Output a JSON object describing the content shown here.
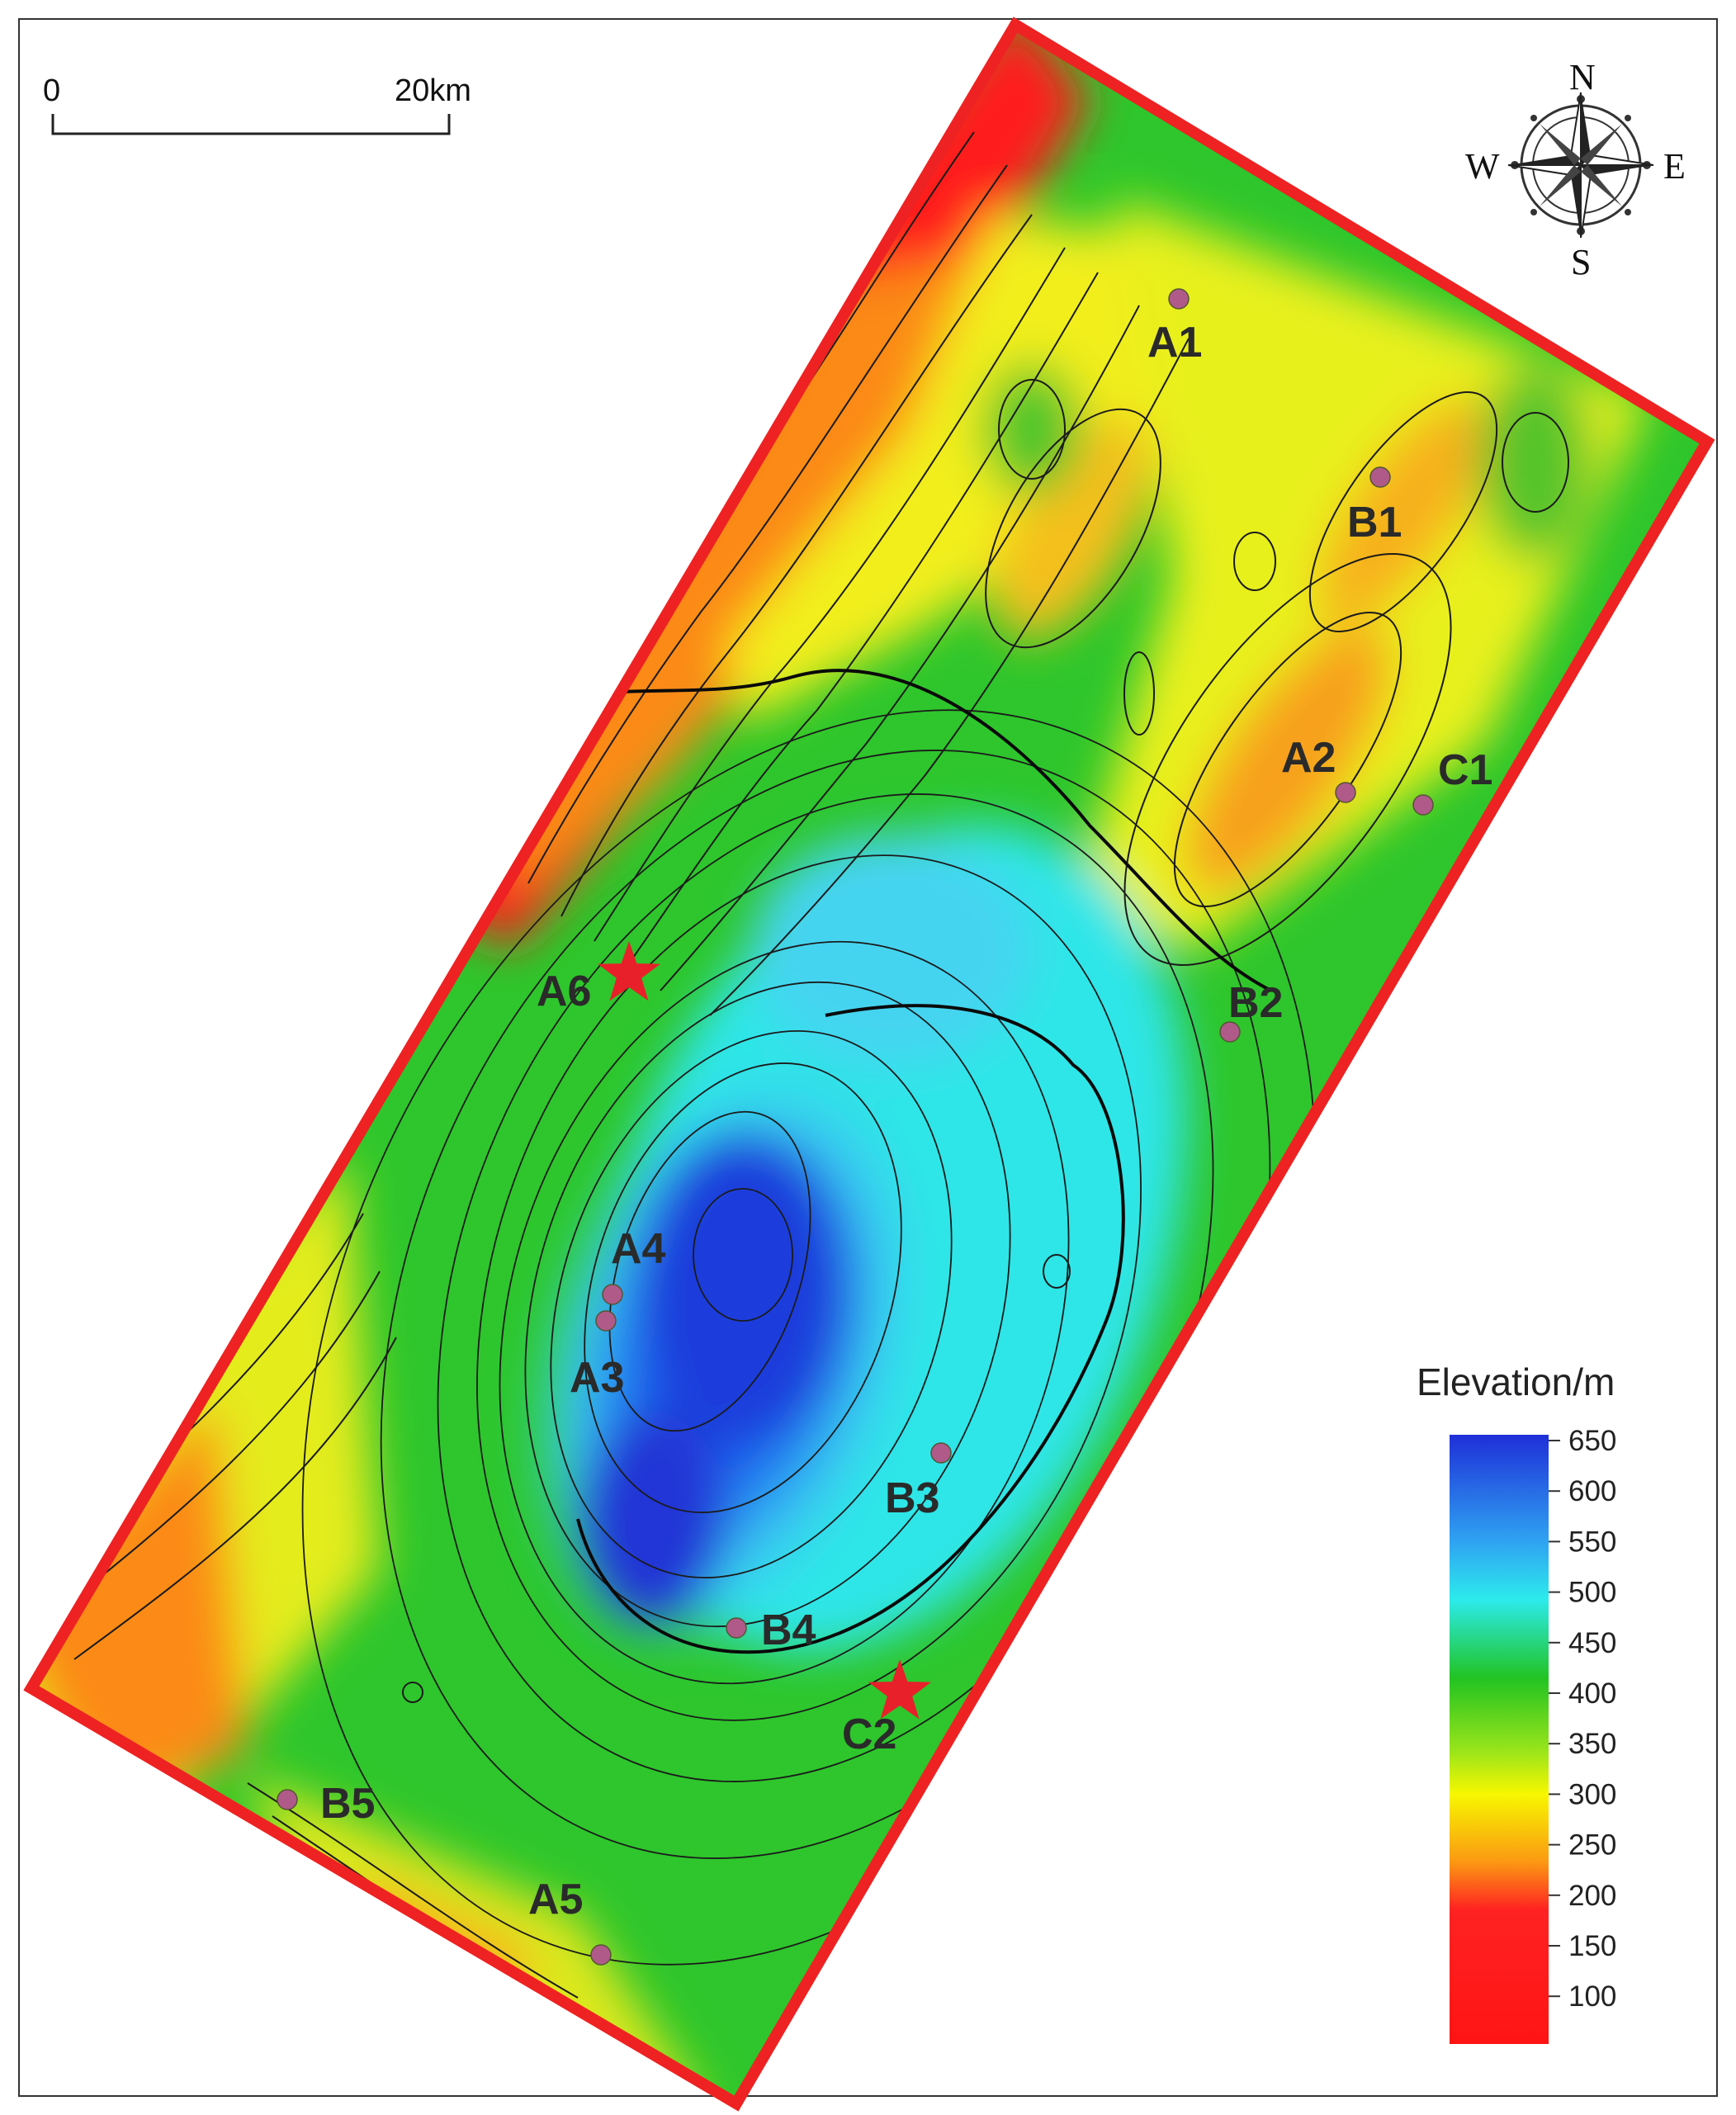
{
  "scale_bar": {
    "start_label": "0",
    "end_label": "20km"
  },
  "compass": {
    "n": "N",
    "s": "S",
    "e": "E",
    "w": "W"
  },
  "legend": {
    "title": "Elevation/m",
    "ticks": [
      "650",
      "600",
      "550",
      "500",
      "450",
      "400",
      "350",
      "300",
      "250",
      "200",
      "150",
      "100"
    ],
    "colors": {
      "high": "#1f2fd8",
      "mid_high": "#29e6f0",
      "mid": "#22c322",
      "mid_low": "#f7f700",
      "low": "#ff1a1a"
    }
  },
  "wells": [
    {
      "label": "A1",
      "type": "dot"
    },
    {
      "label": "B1",
      "type": "dot"
    },
    {
      "label": "A2",
      "type": "dot"
    },
    {
      "label": "C1",
      "type": "dot"
    },
    {
      "label": "A6",
      "type": "star"
    },
    {
      "label": "B2",
      "type": "dot"
    },
    {
      "label": "A4",
      "type": "dot"
    },
    {
      "label": "A3",
      "type": "dot"
    },
    {
      "label": "B3",
      "type": "dot"
    },
    {
      "label": "B4",
      "type": "dot"
    },
    {
      "label": "C2",
      "type": "star"
    },
    {
      "label": "B5",
      "type": "dot"
    },
    {
      "label": "A5",
      "type": "dot"
    }
  ],
  "marker_colors": {
    "dot": "#b05a8a",
    "star": "#e8202a",
    "boundary": "#ee2222"
  }
}
